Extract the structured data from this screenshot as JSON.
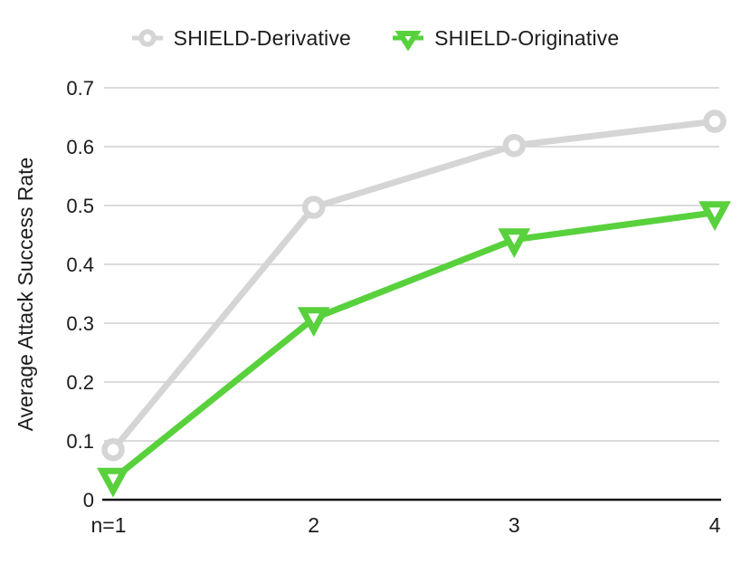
{
  "chart_data": {
    "type": "line",
    "title": "",
    "xlabel": "",
    "ylabel": "Average Attack Success Rate",
    "categories": [
      "n=1",
      "2",
      "3",
      "4"
    ],
    "x": [
      1,
      2,
      3,
      4
    ],
    "series": [
      {
        "name": "SHIELD-Derivative",
        "values": [
          0.085,
          0.497,
          0.602,
          0.643
        ],
        "color": "#d5d5d5",
        "marker": "circle-open"
      },
      {
        "name": "SHIELD-Originative",
        "values": [
          0.035,
          0.308,
          0.442,
          0.488
        ],
        "color": "#58d13c",
        "marker": "triangle-down-open"
      }
    ],
    "ylim": [
      0,
      0.7
    ],
    "yticks": [
      0,
      0.1,
      0.2,
      0.3,
      0.4,
      0.5,
      0.6,
      0.7
    ],
    "ytick_labels": [
      "0",
      "0.1",
      "0.2",
      "0.3",
      "0.4",
      "0.5",
      "0.6",
      "0.7"
    ],
    "grid": "horizontal",
    "legend_position": "top",
    "colors": {
      "grid_line": "#cfcfcf",
      "axis_line": "#141414",
      "text": "#1c1c1c"
    }
  }
}
